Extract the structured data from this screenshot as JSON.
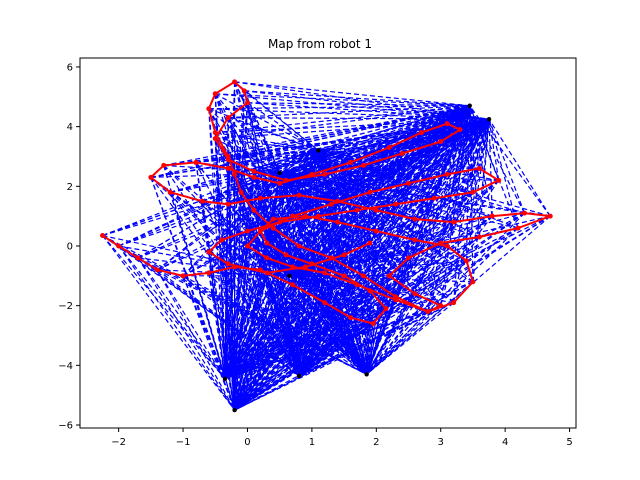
{
  "chart_data": {
    "type": "line",
    "title": "Map from robot 1",
    "xlabel": "",
    "ylabel": "",
    "xlim": [
      -2.6,
      5.1
    ],
    "ylim": [
      -6.1,
      6.3
    ],
    "xticks": [
      -2,
      -1,
      0,
      1,
      2,
      3,
      4,
      5
    ],
    "yticks": [
      -6,
      -4,
      -2,
      0,
      2,
      4,
      6
    ],
    "grid": false,
    "colors": {
      "trajectory": "#ff0000",
      "edges": "#0000ff",
      "landmarks": "#000000"
    },
    "landmarks": {
      "x": [
        3.45,
        3.75,
        1.1,
        0.5,
        -0.35,
        -0.2,
        0.8,
        1.85,
        0.65
      ],
      "y": [
        4.7,
        4.25,
        3.2,
        2.45,
        -4.45,
        -5.5,
        -4.35,
        -4.3,
        -1.0
      ]
    },
    "trajectory": {
      "x": [
        -2.25,
        -2.0,
        -1.7,
        -1.4,
        -1.0,
        -0.6,
        -0.2,
        0.2,
        0.7,
        1.2,
        1.6,
        1.95,
        2.15,
        1.9,
        1.5,
        1.0,
        0.6,
        0.3,
        0.2,
        0.4,
        0.9,
        1.4,
        2.0,
        2.6,
        3.1,
        3.4,
        3.5,
        3.2,
        2.8,
        2.3,
        1.8,
        1.3,
        0.8,
        0.4,
        0.1,
        -0.1,
        -0.2,
        -0.3,
        -0.5,
        -0.6,
        -0.5,
        -0.2,
        -0.05,
        0.0,
        -0.3,
        -0.5,
        -0.3,
        0.1,
        0.6,
        1.2,
        1.8,
        2.4,
        3.0,
        3.3,
        3.1,
        2.7,
        2.2,
        1.6,
        1.0,
        0.5,
        0.1,
        -0.3,
        -0.8,
        -1.3,
        -1.5,
        -1.2,
        -0.7,
        -0.3,
        0.2,
        0.8,
        1.4,
        2.0,
        2.6,
        3.2,
        3.8,
        4.3,
        4.7,
        4.2,
        3.6,
        3.0,
        2.5,
        2.2,
        2.6,
        3.0,
        2.8,
        2.3,
        1.7,
        1.2,
        0.7,
        0.3,
        0.0,
        0.2,
        0.7,
        1.3,
        1.9,
        2.5,
        3.1,
        3.6,
        3.9,
        3.5,
        2.9,
        2.3,
        1.7,
        1.1,
        0.5,
        0.0,
        -0.4,
        -0.6,
        -0.3,
        0.3,
        0.9,
        1.5,
        1.9
      ],
      "y": [
        0.35,
        0.0,
        -0.4,
        -0.8,
        -1.0,
        -0.9,
        -0.7,
        -0.8,
        -1.3,
        -1.9,
        -2.4,
        -2.6,
        -2.1,
        -1.5,
        -1.0,
        -0.6,
        -0.3,
        0.1,
        0.5,
        0.9,
        1.0,
        0.8,
        0.5,
        0.2,
        0.0,
        -0.5,
        -1.2,
        -1.9,
        -2.2,
        -1.7,
        -1.0,
        -0.4,
        0.0,
        0.6,
        1.2,
        1.8,
        2.4,
        3.0,
        3.8,
        4.6,
        5.1,
        5.5,
        5.2,
        4.8,
        4.3,
        3.6,
        2.9,
        2.5,
        2.2,
        2.4,
        2.7,
        3.1,
        3.5,
        3.9,
        4.1,
        3.8,
        3.3,
        2.8,
        2.4,
        2.1,
        2.3,
        2.6,
        2.8,
        2.7,
        2.3,
        1.8,
        1.5,
        1.4,
        1.6,
        1.7,
        1.5,
        1.2,
        0.9,
        0.8,
        1.0,
        1.1,
        1.0,
        0.6,
        0.3,
        0.1,
        -0.4,
        -1.0,
        -1.6,
        -2.0,
        -2.2,
        -1.8,
        -1.3,
        -0.9,
        -0.7,
        -0.4,
        0.0,
        0.5,
        1.0,
        1.4,
        1.8,
        2.1,
        2.4,
        2.6,
        2.2,
        1.8,
        1.6,
        1.4,
        1.2,
        1.0,
        0.8,
        0.5,
        0.2,
        -0.2,
        -0.6,
        -0.9,
        -0.7,
        -0.3,
        0.1
      ]
    }
  }
}
